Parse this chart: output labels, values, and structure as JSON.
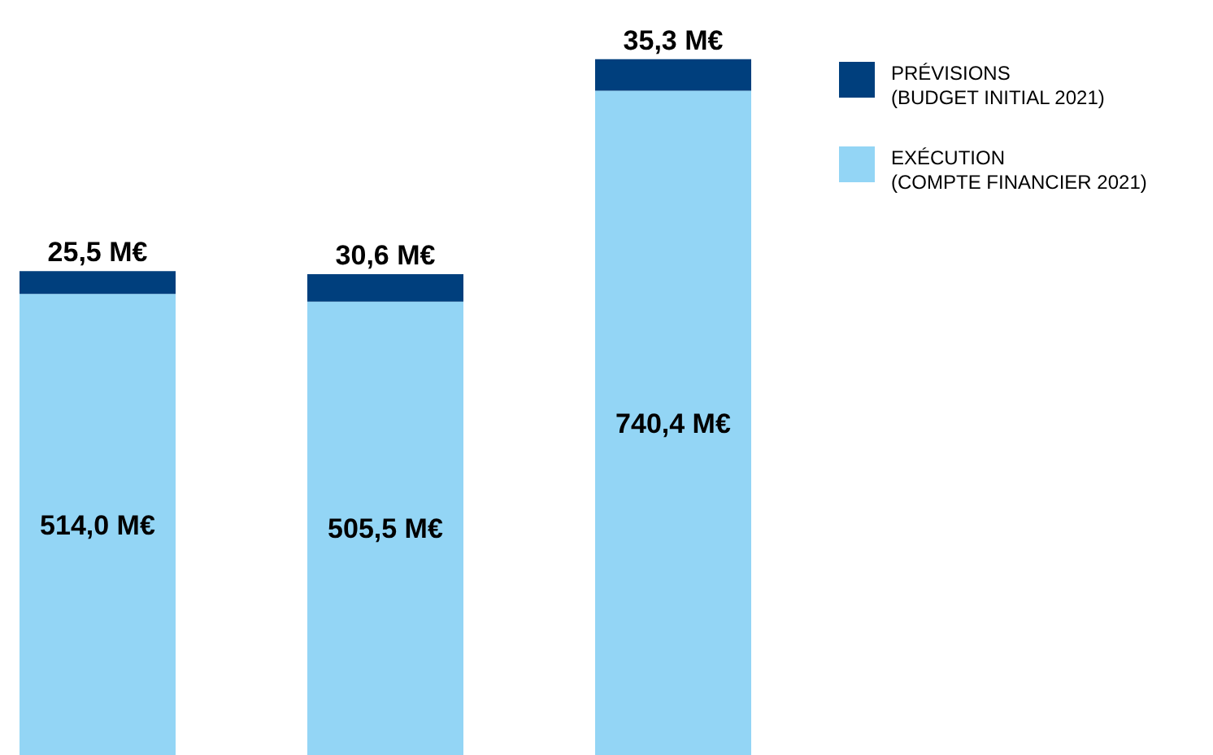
{
  "chart_data": {
    "type": "bar",
    "stacked": true,
    "categories": [
      null,
      null,
      null
    ],
    "series": [
      {
        "name": "EXÉCUTION\n(COMPTE FINANCIER 2021)",
        "color": "#93d5f5",
        "values": [
          514.0,
          505.5,
          740.4
        ],
        "value_labels": [
          "514,0 M€",
          "505,5 M€",
          "740,4 M€"
        ]
      },
      {
        "name": "PRÉVISIONS\n(BUDGET INITIAL 2021)",
        "color": "#003f7d",
        "values": [
          25.5,
          30.6,
          35.3
        ],
        "value_labels": [
          "25,5 M€",
          "30,6 M€",
          "35,3 M€"
        ]
      }
    ],
    "legend": "top right"
  }
}
